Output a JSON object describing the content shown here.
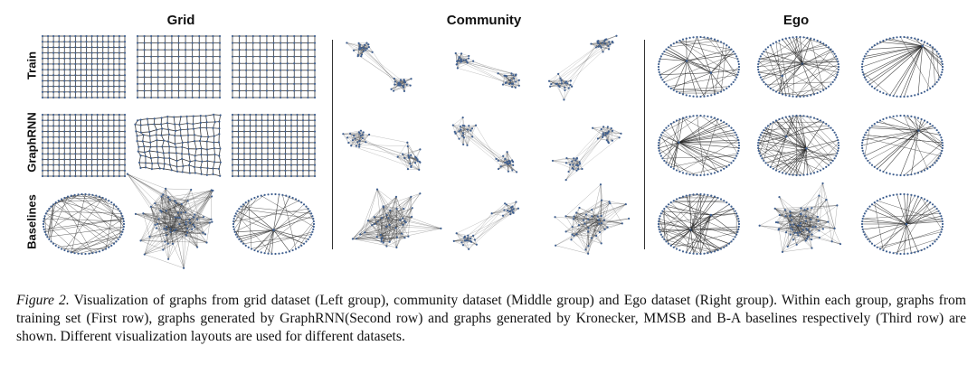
{
  "figure": {
    "column_titles": [
      "Grid",
      "Community",
      "Ego"
    ],
    "row_labels": [
      "Train",
      "GraphRNN",
      "Baselines"
    ],
    "node_color": "#3f5f8f",
    "edge_color": "#222222"
  },
  "caption": {
    "lead": "Figure 2.",
    "text": " Visualization of graphs from grid dataset (Left group), community dataset (Middle group) and Ego dataset (Right group). Within each group, graphs from training set (First row), graphs generated by GraphRNN(Second row) and graphs generated by Kronecker, MMSB and B-A baselines respectively (Third row) are shown. Different visualization layouts are used for different datasets."
  }
}
